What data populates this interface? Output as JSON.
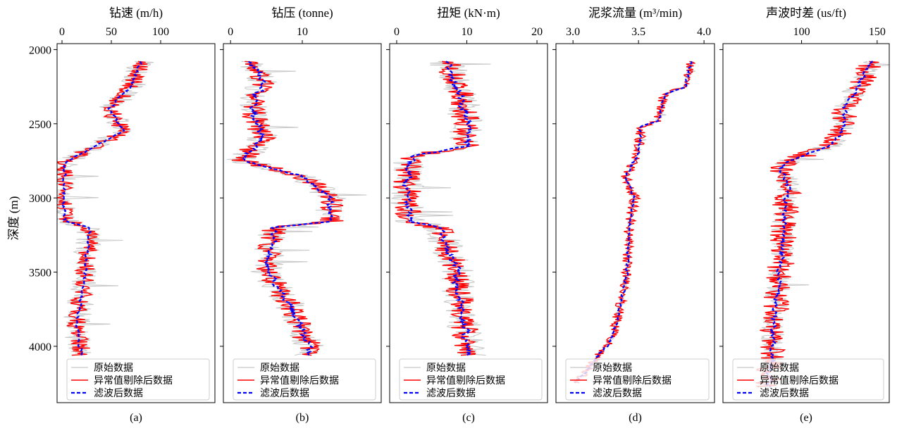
{
  "figure": {
    "ylabel": "深度 (m)",
    "y_range": [
      1960,
      4380
    ],
    "y_ticks": [
      "2000",
      "2500",
      "3000",
      "3500",
      "4000"
    ],
    "colors": {
      "raw": "#c8c8c8",
      "cleaned": "#ff0000",
      "filtered": "#0000ff"
    }
  },
  "legend": {
    "labels": [
      "原始数据",
      "异常值剔除后数据",
      "滤波后数据"
    ],
    "location": "lower-left"
  },
  "chart_data": [
    {
      "type": "line",
      "panel_label": "(a)",
      "title": "钻速 (m/h)",
      "xlim": [
        -5,
        155
      ],
      "x_ticks": [
        "0",
        "50",
        "100"
      ],
      "x_tick_values": [
        0,
        50,
        100
      ],
      "depth_start": 2080,
      "depth_end": 4060,
      "profile": [
        [
          2080,
          80
        ],
        [
          2250,
          70
        ],
        [
          2400,
          48
        ],
        [
          2550,
          62
        ],
        [
          2650,
          35
        ],
        [
          2760,
          2
        ],
        [
          3150,
          2
        ],
        [
          3200,
          28
        ],
        [
          3400,
          25
        ],
        [
          3600,
          22
        ],
        [
          3850,
          14
        ],
        [
          4000,
          18
        ],
        [
          4060,
          20
        ]
      ],
      "noise": {
        "raw": 14,
        "cleaned": 10,
        "filtered": 3
      },
      "series": [
        {
          "name": "原始数据",
          "color": "#c8c8c8"
        },
        {
          "name": "异常值剔除后数据",
          "color": "#ff0000"
        },
        {
          "name": "滤波后数据",
          "color": "#0000ff"
        }
      ]
    },
    {
      "type": "line",
      "panel_label": "(b)",
      "title": "钻压 (tonne)",
      "xlim": [
        -1,
        21
      ],
      "x_ticks": [
        "0",
        "10"
      ],
      "x_tick_values": [
        0,
        10
      ],
      "depth_start": 2080,
      "depth_end": 4060,
      "profile": [
        [
          2080,
          2.5
        ],
        [
          2200,
          4.5
        ],
        [
          2400,
          3
        ],
        [
          2600,
          4.5
        ],
        [
          2750,
          1.5
        ],
        [
          2850,
          10
        ],
        [
          3000,
          14
        ],
        [
          3160,
          14
        ],
        [
          3200,
          6
        ],
        [
          3500,
          5
        ],
        [
          3700,
          8
        ],
        [
          4000,
          11
        ],
        [
          4060,
          11
        ]
      ],
      "noise": {
        "raw": 2.2,
        "cleaned": 1.8,
        "filtered": 0.9
      },
      "series": [
        {
          "name": "原始数据",
          "color": "#c8c8c8"
        },
        {
          "name": "异常值剔除后数据",
          "color": "#ff0000"
        },
        {
          "name": "滤波后数据",
          "color": "#0000ff"
        }
      ]
    },
    {
      "type": "line",
      "panel_label": "(c)",
      "title": "扭矩 (kN·m)",
      "xlim": [
        -1,
        21.5
      ],
      "x_ticks": [
        "0",
        "10",
        "20"
      ],
      "x_tick_values": [
        0,
        10,
        20
      ],
      "depth_start": 2080,
      "depth_end": 4060,
      "profile": [
        [
          2080,
          7
        ],
        [
          2300,
          9
        ],
        [
          2500,
          10
        ],
        [
          2650,
          10
        ],
        [
          2720,
          2
        ],
        [
          2850,
          1.5
        ],
        [
          3050,
          1.5
        ],
        [
          3160,
          2
        ],
        [
          3200,
          6
        ],
        [
          3500,
          8.5
        ],
        [
          3700,
          9
        ],
        [
          4000,
          10
        ],
        [
          4060,
          10.5
        ]
      ],
      "noise": {
        "raw": 2.5,
        "cleaned": 2,
        "filtered": 1
      },
      "series": [
        {
          "name": "原始数据",
          "color": "#c8c8c8"
        },
        {
          "name": "异常值剔除后数据",
          "color": "#ff0000"
        },
        {
          "name": "滤波后数据",
          "color": "#0000ff"
        }
      ]
    },
    {
      "type": "line",
      "panel_label": "(d)",
      "title": "泥浆流量 (m³/min)",
      "xlim": [
        2.87,
        4.08
      ],
      "x_ticks": [
        "3.0",
        "3.5",
        "4.0"
      ],
      "x_tick_values": [
        3.0,
        3.5,
        4.0
      ],
      "depth_start": 2080,
      "depth_end": 4250,
      "profile": [
        [
          2080,
          3.9
        ],
        [
          2250,
          3.86
        ],
        [
          2300,
          3.7
        ],
        [
          2480,
          3.65
        ],
        [
          2520,
          3.52
        ],
        [
          2700,
          3.5
        ],
        [
          2850,
          3.4
        ],
        [
          3000,
          3.47
        ],
        [
          3200,
          3.43
        ],
        [
          3500,
          3.41
        ],
        [
          3650,
          3.38
        ],
        [
          3800,
          3.34
        ],
        [
          3950,
          3.3
        ],
        [
          4050,
          3.2
        ],
        [
          4150,
          3.12
        ],
        [
          4250,
          3.02
        ]
      ],
      "noise": {
        "raw": 0.02,
        "cleaned": 0.04,
        "filtered": 0.02
      },
      "series": [
        {
          "name": "原始数据",
          "color": "#c8c8c8"
        },
        {
          "name": "异常值剔除后数据",
          "color": "#ff0000"
        },
        {
          "name": "滤波后数据",
          "color": "#0000ff"
        }
      ]
    },
    {
      "type": "line",
      "panel_label": "(e)",
      "title": "声波时差 (us/ft)",
      "xlim": [
        48,
        158
      ],
      "x_ticks": [
        "100",
        "150"
      ],
      "x_tick_values": [
        100,
        150
      ],
      "depth_start": 2080,
      "depth_end": 4280,
      "profile": [
        [
          2080,
          147
        ],
        [
          2250,
          137
        ],
        [
          2400,
          128
        ],
        [
          2550,
          127
        ],
        [
          2650,
          118
        ],
        [
          2750,
          92
        ],
        [
          2800,
          86
        ],
        [
          2900,
          91
        ],
        [
          3200,
          88
        ],
        [
          3500,
          86
        ],
        [
          3800,
          82
        ],
        [
          4100,
          80
        ],
        [
          4280,
          78
        ]
      ],
      "noise": {
        "raw": 8,
        "cleaned": 9,
        "filtered": 3
      },
      "series": [
        {
          "name": "原始数据",
          "color": "#c8c8c8"
        },
        {
          "name": "异常值剔除后数据",
          "color": "#ff0000"
        },
        {
          "name": "滤波后数据",
          "color": "#0000ff"
        }
      ]
    }
  ]
}
